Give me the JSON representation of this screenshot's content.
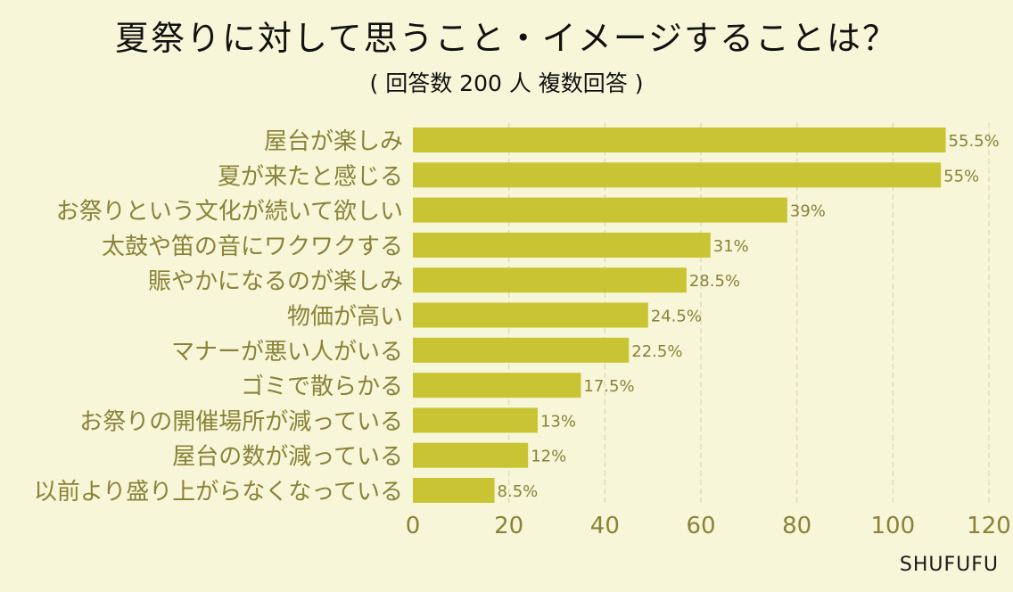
{
  "chart_data": {
    "type": "bar",
    "orientation": "horizontal",
    "title": "夏祭りに対して思うこと・イメージすることは？",
    "subtitle": "( 回答数 200 人  複数回答 )",
    "categories": [
      "屋台が楽しみ",
      "夏が来たと感じる",
      "お祭りという文化が続いて欲しい",
      "太鼓や笛の音にワクワクする",
      "賑やかになるのが楽しみ",
      "物価が高い",
      "マナーが悪い人がいる",
      "ゴミで散らかる",
      "お祭りの開催場所が減っている",
      "屋台の数が減っている",
      "以前より盛り上がらなくなっている"
    ],
    "values": [
      111,
      110,
      78,
      62,
      57,
      49,
      45,
      35,
      26,
      24,
      17
    ],
    "data_labels": [
      "55.5%",
      "55%",
      "39%",
      "31%",
      "28.5%",
      "24.5%",
      "22.5%",
      "17.5%",
      "13%",
      "12%",
      "8.5%"
    ],
    "xlim": [
      0,
      120
    ],
    "xticks": [
      0,
      20,
      40,
      60,
      80,
      100,
      120
    ],
    "grid": true,
    "colors": {
      "bar": "#c9c433",
      "label": "#8a8238",
      "tick": "#8a8238",
      "grid": "#d9d6b4"
    }
  },
  "brand": "SHUFUFU"
}
